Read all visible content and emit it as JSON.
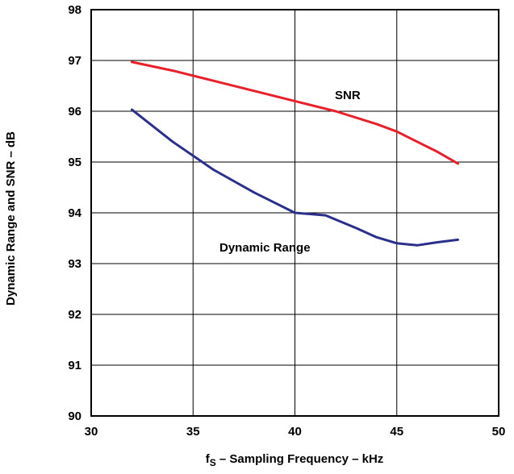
{
  "chart_data": {
    "type": "line",
    "title": "",
    "xlabel": {
      "prefix": "f",
      "subscript": "S",
      "suffix": " – Sampling Frequency – kHz"
    },
    "ylabel": "Dynamic Range and SNR – dB",
    "xlim": [
      30,
      50
    ],
    "ylim": [
      90,
      98
    ],
    "x_ticks": [
      "30",
      "35",
      "40",
      "45",
      "50"
    ],
    "y_ticks": [
      "90",
      "91",
      "92",
      "93",
      "94",
      "95",
      "96",
      "97",
      "98"
    ],
    "grid": true,
    "series": [
      {
        "name": "SNR",
        "color": "#e8202a",
        "points": [
          [
            32,
            96.97
          ],
          [
            34,
            96.8
          ],
          [
            36,
            96.6
          ],
          [
            38,
            96.4
          ],
          [
            40,
            96.2
          ],
          [
            42,
            96.0
          ],
          [
            44,
            95.75
          ],
          [
            45,
            95.6
          ],
          [
            46,
            95.4
          ],
          [
            47,
            95.2
          ],
          [
            48,
            94.97
          ]
        ]
      },
      {
        "name": "Dynamic Range",
        "color": "#2b2f8c",
        "points": [
          [
            32,
            96.03
          ],
          [
            34,
            95.4
          ],
          [
            36,
            94.85
          ],
          [
            38,
            94.4
          ],
          [
            40,
            94.0
          ],
          [
            41.5,
            93.95
          ],
          [
            43,
            93.7
          ],
          [
            44,
            93.52
          ],
          [
            45,
            93.4
          ],
          [
            46,
            93.36
          ],
          [
            47,
            93.42
          ],
          [
            48,
            93.47
          ]
        ]
      }
    ]
  }
}
